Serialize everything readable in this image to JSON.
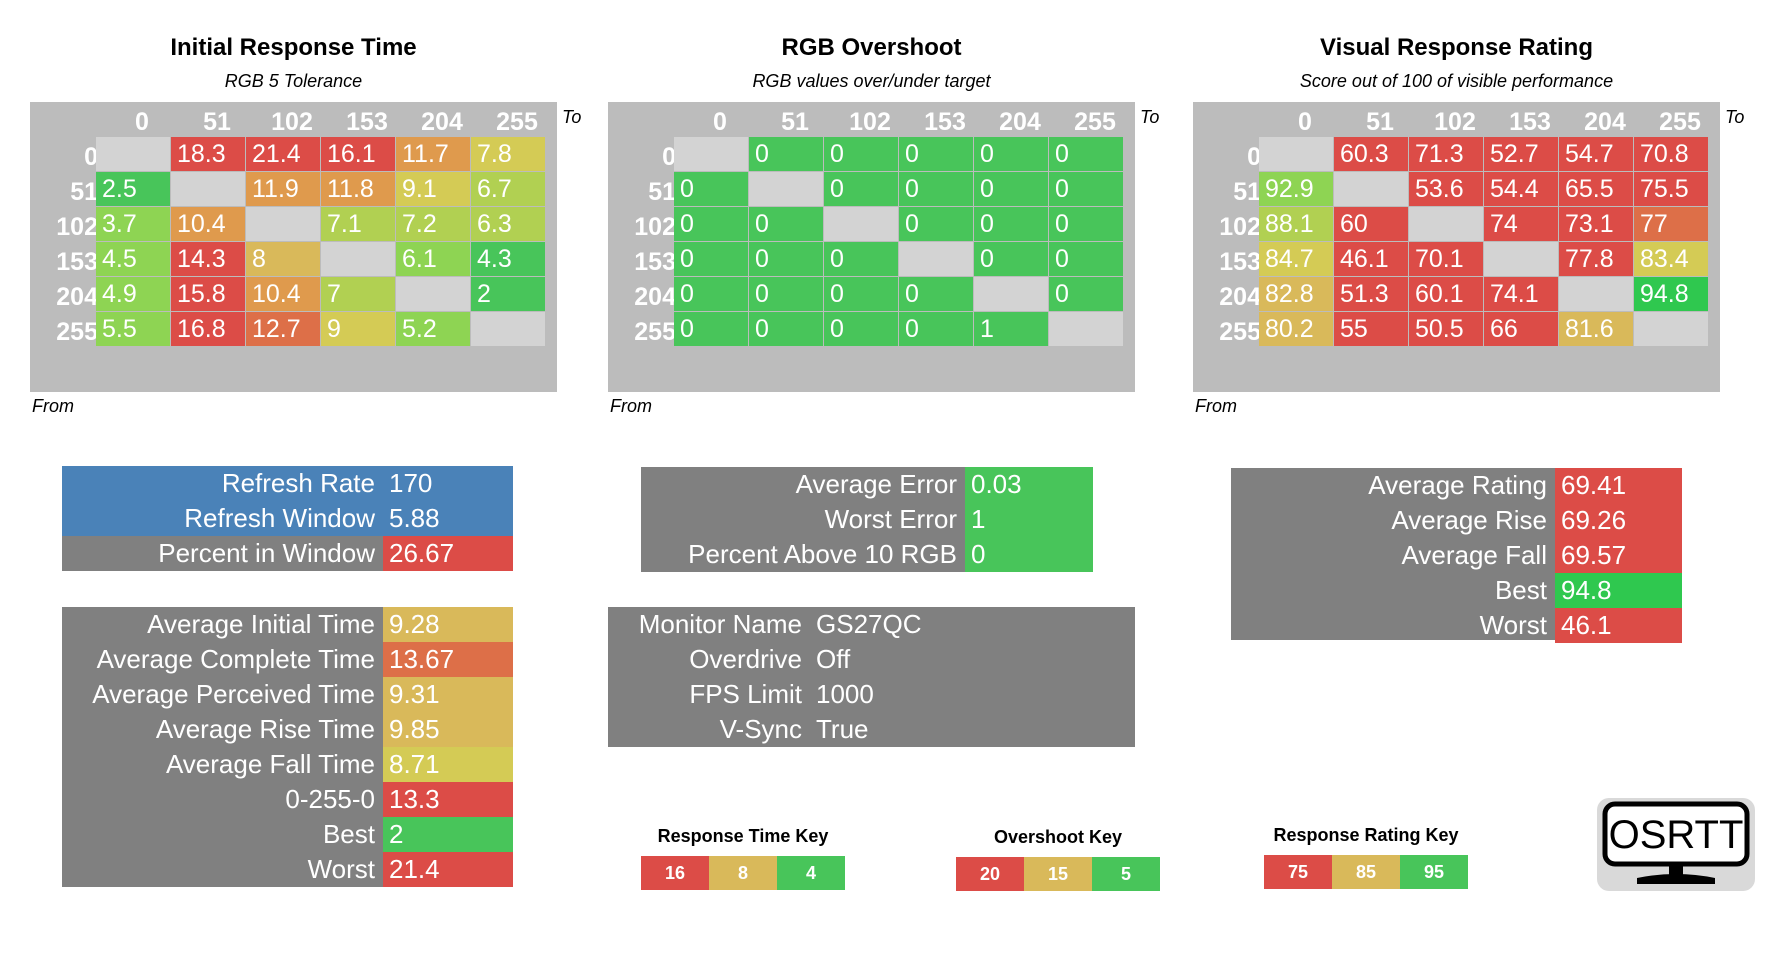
{
  "colors": {
    "red": "#dc4c47",
    "orange_red": "#dd6f48",
    "orange": "#df9a4d",
    "yellow_orange": "#d9b95a",
    "yellow": "#d4cb55",
    "yellow_green": "#b1d052",
    "light_green": "#8ed453",
    "green": "#48c55a",
    "bright_green": "#2fc84f",
    "diag_gray": "#d3d3d3",
    "blue": "#4a82b8",
    "panel_gray": "#808080"
  },
  "chart_data": [
    {
      "type": "heatmap",
      "title": "Initial Response Time",
      "subtitle": "RGB 5 Tolerance",
      "col_label": "To",
      "row_label": "From",
      "columns": [
        "0",
        "51",
        "102",
        "153",
        "204",
        "255"
      ],
      "rows": [
        "0",
        "51",
        "102",
        "153",
        "204",
        "255"
      ],
      "values": [
        [
          "",
          "18.3",
          "21.4",
          "16.1",
          "11.7",
          "7.8"
        ],
        [
          "2.5",
          "",
          "11.9",
          "11.8",
          "9.1",
          "6.7"
        ],
        [
          "3.7",
          "10.4",
          "",
          "7.1",
          "7.2",
          "6.3"
        ],
        [
          "4.5",
          "14.3",
          "8",
          "",
          "6.1",
          "4.3"
        ],
        [
          "4.9",
          "15.8",
          "10.4",
          "7",
          "",
          "2"
        ],
        [
          "5.5",
          "16.8",
          "12.7",
          "9",
          "5.2",
          ""
        ]
      ],
      "cell_colors": [
        [
          "diag_gray",
          "red",
          "red",
          "red",
          "orange",
          "yellow"
        ],
        [
          "green",
          "diag_gray",
          "orange",
          "orange",
          "yellow",
          "yellow_green"
        ],
        [
          "light_green",
          "orange",
          "diag_gray",
          "yellow_green",
          "yellow_green",
          "yellow_green"
        ],
        [
          "light_green",
          "red",
          "yellow_orange",
          "diag_gray",
          "light_green",
          "green"
        ],
        [
          "light_green",
          "red",
          "orange",
          "yellow_green",
          "diag_gray",
          "green"
        ],
        [
          "light_green",
          "red",
          "orange_red",
          "yellow",
          "light_green",
          "diag_gray"
        ]
      ]
    },
    {
      "type": "heatmap",
      "title": "RGB Overshoot",
      "subtitle": "RGB values over/under target",
      "col_label": "To",
      "row_label": "From",
      "columns": [
        "0",
        "51",
        "102",
        "153",
        "204",
        "255"
      ],
      "rows": [
        "0",
        "51",
        "102",
        "153",
        "204",
        "255"
      ],
      "values": [
        [
          "",
          "0",
          "0",
          "0",
          "0",
          "0"
        ],
        [
          "0",
          "",
          "0",
          "0",
          "0",
          "0"
        ],
        [
          "0",
          "0",
          "",
          "0",
          "0",
          "0"
        ],
        [
          "0",
          "0",
          "0",
          "",
          "0",
          "0"
        ],
        [
          "0",
          "0",
          "0",
          "0",
          "",
          "0"
        ],
        [
          "0",
          "0",
          "0",
          "0",
          "1",
          ""
        ]
      ],
      "cell_colors": [
        [
          "diag_gray",
          "green",
          "green",
          "green",
          "green",
          "green"
        ],
        [
          "green",
          "diag_gray",
          "green",
          "green",
          "green",
          "green"
        ],
        [
          "green",
          "green",
          "diag_gray",
          "green",
          "green",
          "green"
        ],
        [
          "green",
          "green",
          "green",
          "diag_gray",
          "green",
          "green"
        ],
        [
          "green",
          "green",
          "green",
          "green",
          "diag_gray",
          "green"
        ],
        [
          "green",
          "green",
          "green",
          "green",
          "green",
          "diag_gray"
        ]
      ]
    },
    {
      "type": "heatmap",
      "title": "Visual Response Rating",
      "subtitle": "Score out of 100 of visible performance",
      "col_label": "To",
      "row_label": "From",
      "columns": [
        "0",
        "51",
        "102",
        "153",
        "204",
        "255"
      ],
      "rows": [
        "0",
        "51",
        "102",
        "153",
        "204",
        "255"
      ],
      "values": [
        [
          "",
          "60.3",
          "71.3",
          "52.7",
          "54.7",
          "70.8"
        ],
        [
          "92.9",
          "",
          "53.6",
          "54.4",
          "65.5",
          "75.5"
        ],
        [
          "88.1",
          "60",
          "",
          "74",
          "73.1",
          "77"
        ],
        [
          "84.7",
          "46.1",
          "70.1",
          "",
          "77.8",
          "83.4"
        ],
        [
          "82.8",
          "51.3",
          "60.1",
          "74.1",
          "",
          "94.8"
        ],
        [
          "80.2",
          "55",
          "50.5",
          "66",
          "81.6",
          ""
        ]
      ],
      "cell_colors": [
        [
          "diag_gray",
          "red",
          "red",
          "red",
          "red",
          "red"
        ],
        [
          "light_green",
          "diag_gray",
          "red",
          "red",
          "red",
          "red"
        ],
        [
          "yellow_green",
          "red",
          "diag_gray",
          "red",
          "red",
          "orange_red"
        ],
        [
          "yellow",
          "red",
          "red",
          "diag_gray",
          "red",
          "yellow"
        ],
        [
          "yellow_orange",
          "red",
          "red",
          "red",
          "diag_gray",
          "bright_green"
        ],
        [
          "yellow_orange",
          "red",
          "red",
          "red",
          "yellow_orange",
          "diag_gray"
        ]
      ]
    }
  ],
  "refresh_panel": [
    {
      "label": "Refresh Rate",
      "value": "170",
      "label_color": "blue",
      "value_color": "blue"
    },
    {
      "label": "Refresh Window",
      "value": "5.88",
      "label_color": "blue",
      "value_color": "blue"
    },
    {
      "label": "Percent in Window",
      "value": "26.67",
      "label_color": "panel_gray",
      "value_color": "red"
    }
  ],
  "time_panel": [
    {
      "label": "Average Initial Time",
      "value": "9.28",
      "value_color": "yellow_orange"
    },
    {
      "label": "Average Complete Time",
      "value": "13.67",
      "value_color": "orange_red"
    },
    {
      "label": "Average Perceived Time",
      "value": "9.31",
      "value_color": "yellow_orange"
    },
    {
      "label": "Average Rise Time",
      "value": "9.85",
      "value_color": "yellow_orange"
    },
    {
      "label": "Average Fall Time",
      "value": "8.71",
      "value_color": "yellow"
    },
    {
      "label": "0-255-0",
      "value": "13.3",
      "value_color": "red"
    },
    {
      "label": "Best",
      "value": "2",
      "value_color": "green"
    },
    {
      "label": "Worst",
      "value": "21.4",
      "value_color": "red"
    }
  ],
  "error_panel": [
    {
      "label": "Average Error",
      "value": "0.03",
      "value_color": "green"
    },
    {
      "label": "Worst Error",
      "value": "1",
      "value_color": "green"
    },
    {
      "label": "Percent Above 10 RGB",
      "value": "0",
      "value_color": "green"
    }
  ],
  "monitor_panel": [
    {
      "label": "Monitor Name",
      "value": "GS27QC"
    },
    {
      "label": "Overdrive",
      "value": "Off"
    },
    {
      "label": "FPS Limit",
      "value": "1000"
    },
    {
      "label": "V-Sync",
      "value": "True"
    }
  ],
  "rating_panel": [
    {
      "label": "Average Rating",
      "value": "69.41",
      "value_color": "red"
    },
    {
      "label": "Average Rise",
      "value": "69.26",
      "value_color": "red"
    },
    {
      "label": "Average Fall",
      "value": "69.57",
      "value_color": "red"
    },
    {
      "label": "Best",
      "value": "94.8",
      "value_color": "bright_green"
    },
    {
      "label": "Worst",
      "value": "46.1",
      "value_color": "red"
    }
  ],
  "keys": [
    {
      "title": "Response Time Key",
      "cells": [
        {
          "value": "16",
          "color": "red"
        },
        {
          "value": "8",
          "color": "yellow_orange"
        },
        {
          "value": "4",
          "color": "green"
        }
      ]
    },
    {
      "title": "Overshoot Key",
      "cells": [
        {
          "value": "20",
          "color": "red"
        },
        {
          "value": "15",
          "color": "yellow_orange"
        },
        {
          "value": "5",
          "color": "green"
        }
      ]
    },
    {
      "title": "Response Rating Key",
      "cells": [
        {
          "value": "75",
          "color": "red"
        },
        {
          "value": "85",
          "color": "yellow_orange"
        },
        {
          "value": "95",
          "color": "green"
        }
      ]
    }
  ],
  "logo": {
    "text": "OSRTT",
    "icon": "monitor-logo-icon"
  }
}
